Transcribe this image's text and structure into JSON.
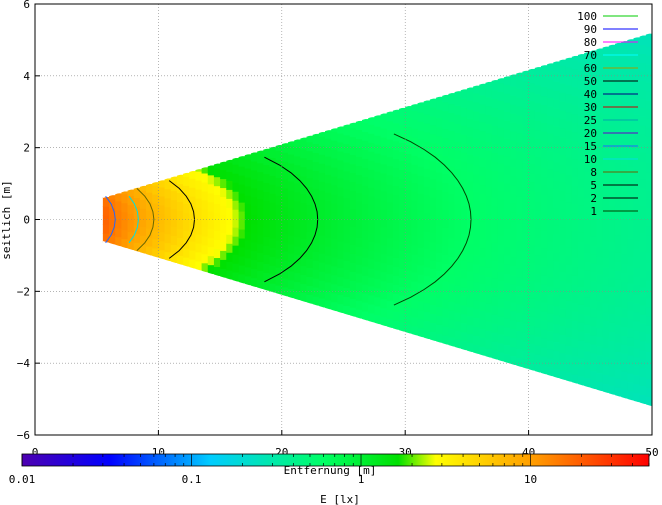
{
  "chart_data": {
    "type": "heatmap",
    "title": "",
    "xlabel": "Entfernung [m]",
    "ylabel": "seitlich [m]",
    "xlim": [
      0,
      50
    ],
    "ylim": [
      -6,
      6
    ],
    "x_ticks": [
      "0",
      "10",
      "20",
      "30",
      "40",
      "50"
    ],
    "y_ticks": [
      "6",
      "4",
      "2",
      "0",
      "−2",
      "−4",
      "−6"
    ],
    "grid": true,
    "colorbar": {
      "label": "E [lx]",
      "scale": "log",
      "range": [
        0.01,
        50
      ],
      "ticks": [
        "0.01",
        "0.1",
        "1",
        "10"
      ]
    },
    "beam": {
      "x_start": 5.5,
      "x_end": 50,
      "half_width_start": 0.6,
      "half_width_end": 5.2
    },
    "contour_legend_position": "top-right",
    "contours": [
      {
        "level": "100",
        "color": "#00cc00"
      },
      {
        "level": "90",
        "color": "#0000ff"
      },
      {
        "level": "80",
        "color": "#ff00ff"
      },
      {
        "level": "70",
        "color": "#00ffff"
      },
      {
        "level": "60",
        "color": "#a0a000"
      },
      {
        "level": "50",
        "color": "#000000"
      },
      {
        "level": "40",
        "color": "#000080"
      },
      {
        "level": "30",
        "color": "#cc0000"
      },
      {
        "level": "25",
        "color": "#00aaaa"
      },
      {
        "level": "20",
        "color": "#6600cc"
      },
      {
        "level": "15",
        "color": "#2266ff"
      },
      {
        "level": "10",
        "color": "#00e0e0"
      },
      {
        "level": "8",
        "color": "#666600"
      },
      {
        "level": "5",
        "color": "#000000"
      },
      {
        "level": "2",
        "color": "#000000"
      },
      {
        "level": "1",
        "color": "#004400"
      }
    ]
  }
}
